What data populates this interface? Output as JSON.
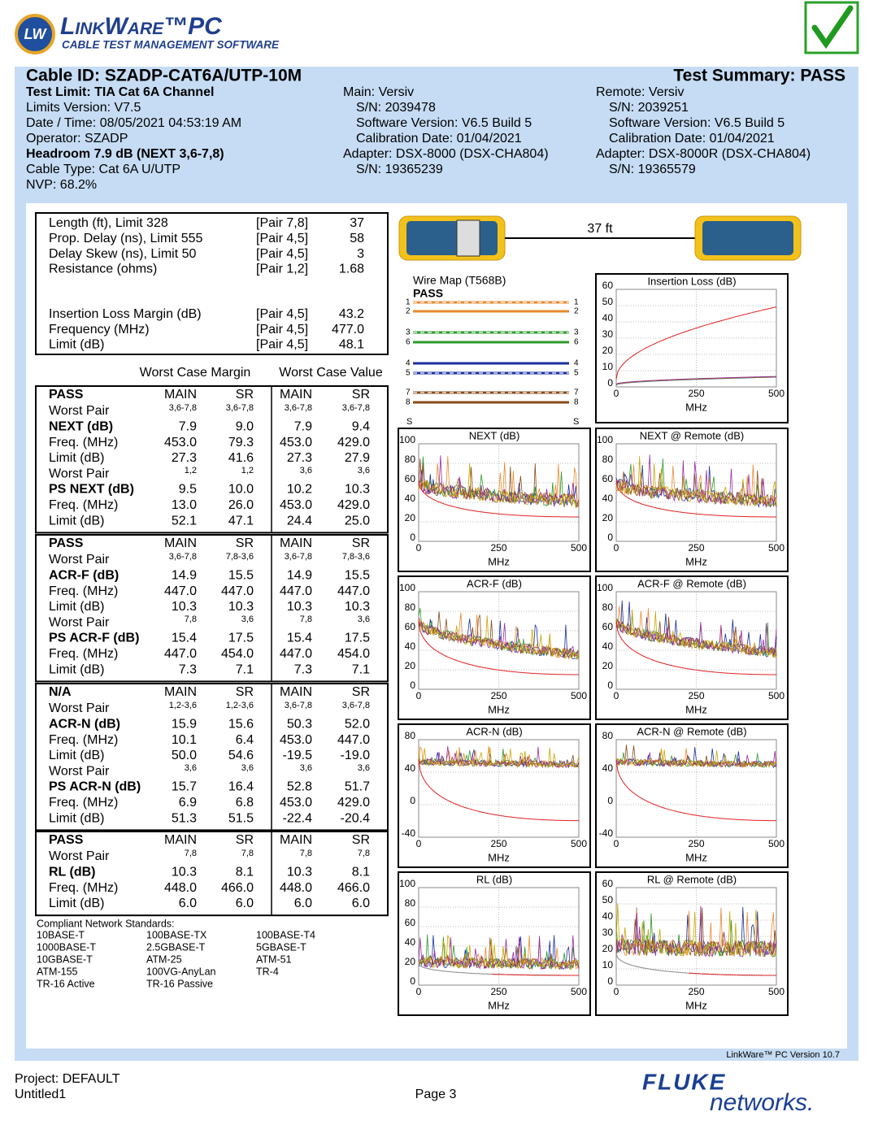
{
  "header": {
    "logo_mark": "LW",
    "logo_title": "LinkWare™PC",
    "logo_subtitle": "CABLE TEST MANAGEMENT SOFTWARE"
  },
  "summary": {
    "cable_id": "Cable ID: SZADP-CAT6A/UTP-10M",
    "test_summary": "Test Summary: PASS",
    "test_info": [
      "Test Limit: TIA Cat 6A Channel",
      "Limits Version: V7.5",
      "Date / Time: 08/05/2021  04:53:19 AM",
      "Operator: SZADP",
      "Headroom 7.9 dB (NEXT 3,6-7,8)",
      "Cable Type: Cat 6A U/UTP",
      "NVP: 68.2%"
    ],
    "main": [
      "Main: Versiv",
      "S/N: 2039478",
      "Software Version: V6.5 Build 5",
      "Calibration Date: 01/04/2021",
      "Adapter: DSX-8000 (DSX-CHA804)",
      "S/N: 19365239"
    ],
    "remote": [
      "Remote: Versiv",
      "S/N: 2039251",
      "Software Version: V6.5 Build 5",
      "Calibration Date: 01/04/2021",
      "Adapter: DSX-8000R (DSX-CHA804)",
      "S/N: 19365579"
    ]
  },
  "measurements": [
    [
      "Length (ft), Limit 328",
      "[Pair 7,8]",
      "37"
    ],
    [
      "Prop. Delay (ns), Limit 555",
      "[Pair 4,5]",
      "58"
    ],
    [
      "Delay Skew (ns), Limit 50",
      "[Pair 4,5]",
      "3"
    ],
    [
      "Resistance (ohms)",
      "[Pair 1,2]",
      "1.68"
    ],
    [
      "Insertion Loss Margin (dB)",
      "[Pair 4,5]",
      "43.2"
    ],
    [
      "Frequency (MHz)",
      "[Pair 4,5]",
      "477.0"
    ],
    [
      "Limit (dB)",
      "[Pair 4,5]",
      "48.1"
    ]
  ],
  "column_headers": [
    "Worst Case Margin",
    "Worst Case Value"
  ],
  "sections": [
    {
      "header": [
        "PASS",
        "MAIN",
        "SR",
        "MAIN",
        "SR"
      ],
      "rows": [
        [
          "Worst Pair",
          "3,6-7,8",
          "3,6-7,8",
          "3,6-7,8",
          "3,6-7,8"
        ],
        [
          "NEXT (dB)",
          "7.9",
          "9.0",
          "7.9",
          "9.4"
        ],
        [
          "Freq. (MHz)",
          "453.0",
          "79.3",
          "453.0",
          "429.0"
        ],
        [
          "Limit (dB)",
          "27.3",
          "41.6",
          "27.3",
          "27.9"
        ],
        [
          "Worst Pair",
          "1,2",
          "1,2",
          "3,6",
          "3,6"
        ],
        [
          "PS NEXT (dB)",
          "9.5",
          "10.0",
          "10.2",
          "10.3"
        ],
        [
          "Freq. (MHz)",
          "13.0",
          "26.0",
          "453.0",
          "429.0"
        ],
        [
          "Limit (dB)",
          "52.1",
          "47.1",
          "24.4",
          "25.0"
        ]
      ]
    },
    {
      "header": [
        "PASS",
        "MAIN",
        "SR",
        "MAIN",
        "SR"
      ],
      "rows": [
        [
          "Worst Pair",
          "3,6-7,8",
          "7,8-3,6",
          "3,6-7,8",
          "7,8-3,6"
        ],
        [
          "ACR-F (dB)",
          "14.9",
          "15.5",
          "14.9",
          "15.5"
        ],
        [
          "Freq. (MHz)",
          "447.0",
          "447.0",
          "447.0",
          "447.0"
        ],
        [
          "Limit (dB)",
          "10.3",
          "10.3",
          "10.3",
          "10.3"
        ],
        [
          "Worst Pair",
          "7,8",
          "3,6",
          "7,8",
          "3,6"
        ],
        [
          "PS ACR-F (dB)",
          "15.4",
          "17.5",
          "15.4",
          "17.5"
        ],
        [
          "Freq. (MHz)",
          "447.0",
          "454.0",
          "447.0",
          "454.0"
        ],
        [
          "Limit (dB)",
          "7.3",
          "7.1",
          "7.3",
          "7.1"
        ]
      ]
    },
    {
      "header": [
        "N/A",
        "MAIN",
        "SR",
        "MAIN",
        "SR"
      ],
      "rows": [
        [
          "Worst Pair",
          "1,2-3,6",
          "1,2-3,6",
          "3,6-7,8",
          "3,6-7,8"
        ],
        [
          "ACR-N (dB)",
          "15.9",
          "15.6",
          "50.3",
          "52.0"
        ],
        [
          "Freq. (MHz)",
          "10.1",
          "6.4",
          "453.0",
          "447.0"
        ],
        [
          "Limit (dB)",
          "50.0",
          "54.6",
          "-19.5",
          "-19.0"
        ],
        [
          "Worst Pair",
          "3,6",
          "3,6",
          "3,6",
          "3,6"
        ],
        [
          "PS ACR-N (dB)",
          "15.7",
          "16.4",
          "52.8",
          "51.7"
        ],
        [
          "Freq. (MHz)",
          "6.9",
          "6.8",
          "453.0",
          "429.0"
        ],
        [
          "Limit (dB)",
          "51.3",
          "51.5",
          "-22.4",
          "-20.4"
        ]
      ]
    },
    {
      "header": [
        "PASS",
        "MAIN",
        "SR",
        "MAIN",
        "SR"
      ],
      "rows": [
        [
          "Worst Pair",
          "7,8",
          "7,8",
          "7,8",
          "7,8"
        ],
        [
          "RL (dB)",
          "10.3",
          "8.1",
          "10.3",
          "8.1"
        ],
        [
          "Freq. (MHz)",
          "448.0",
          "466.0",
          "448.0",
          "466.0"
        ],
        [
          "Limit (dB)",
          "6.0",
          "6.0",
          "6.0",
          "6.0"
        ]
      ]
    }
  ],
  "standards": {
    "title": "Compliant Network Standards:",
    "rows": [
      [
        "10BASE-T",
        "100BASE-TX",
        "100BASE-T4"
      ],
      [
        "1000BASE-T",
        "2.5GBASE-T",
        "5GBASE-T"
      ],
      [
        "10GBASE-T",
        "ATM-25",
        "ATM-51"
      ],
      [
        "ATM-155",
        "100VG-AnyLan",
        "TR-4"
      ],
      [
        "TR-16 Active",
        "TR-16 Passive"
      ]
    ]
  },
  "wire_map": {
    "title": "Wire Map (T568B)",
    "result": "PASS",
    "pins": [
      "1",
      "2",
      "3",
      "6",
      "4",
      "5",
      "7",
      "8"
    ],
    "shield": "S",
    "length": "37 ft"
  },
  "plots": [
    {
      "title": "Insertion Loss (dB)",
      "ylim": [
        0,
        60
      ],
      "yticks": [
        0,
        10,
        20,
        30,
        40,
        50,
        60
      ],
      "xlim": [
        0,
        500
      ],
      "xticks": [
        0,
        250,
        500
      ],
      "xlabel": "MHz"
    },
    {
      "title": "NEXT (dB)",
      "ylim": [
        0,
        100
      ],
      "yticks": [
        0,
        20,
        40,
        60,
        80,
        100
      ],
      "xlim": [
        0,
        500
      ],
      "xticks": [
        0,
        250,
        500
      ],
      "xlabel": "MHz"
    },
    {
      "title": "NEXT @ Remote (dB)",
      "ylim": [
        0,
        100
      ],
      "yticks": [
        0,
        20,
        40,
        60,
        80,
        100
      ],
      "xlim": [
        0,
        500
      ],
      "xticks": [
        0,
        250,
        500
      ],
      "xlabel": "MHz"
    },
    {
      "title": "ACR-F (dB)",
      "ylim": [
        0,
        100
      ],
      "yticks": [
        0,
        20,
        40,
        60,
        80,
        100
      ],
      "xlim": [
        0,
        500
      ],
      "xticks": [
        0,
        250,
        500
      ],
      "xlabel": "MHz"
    },
    {
      "title": "ACR-F @ Remote (dB)",
      "ylim": [
        0,
        100
      ],
      "yticks": [
        0,
        20,
        40,
        60,
        80,
        100
      ],
      "xlim": [
        0,
        500
      ],
      "xticks": [
        0,
        250,
        500
      ],
      "xlabel": "MHz"
    },
    {
      "title": "ACR-N (dB)",
      "ylim": [
        -40,
        80
      ],
      "yticks": [
        -40,
        0,
        40,
        80
      ],
      "xlim": [
        0,
        500
      ],
      "xticks": [
        0,
        250,
        500
      ],
      "xlabel": "MHz"
    },
    {
      "title": "ACR-N @ Remote (dB)",
      "ylim": [
        -40,
        80
      ],
      "yticks": [
        -40,
        0,
        40,
        80
      ],
      "xlim": [
        0,
        500
      ],
      "xticks": [
        0,
        250,
        500
      ],
      "xlabel": "MHz"
    },
    {
      "title": "RL (dB)",
      "ylim": [
        0,
        100
      ],
      "yticks": [
        0,
        20,
        40,
        60,
        80,
        100
      ],
      "xlim": [
        0,
        500
      ],
      "xticks": [
        0,
        250,
        500
      ],
      "xlabel": "MHz"
    },
    {
      "title": "RL @ Remote (dB)",
      "ylim": [
        0,
        60
      ],
      "yticks": [
        0,
        10,
        20,
        30,
        40,
        50,
        60
      ],
      "xlim": [
        0,
        500
      ],
      "xticks": [
        0,
        250,
        500
      ],
      "xlabel": "MHz"
    }
  ],
  "footer": {
    "version": "LinkWare™ PC Version 10.7",
    "project": "Project: DEFAULT",
    "file": "Untitled1",
    "page": "Page 3",
    "brand_top": "FLUKE",
    "brand_bottom": "networks."
  }
}
